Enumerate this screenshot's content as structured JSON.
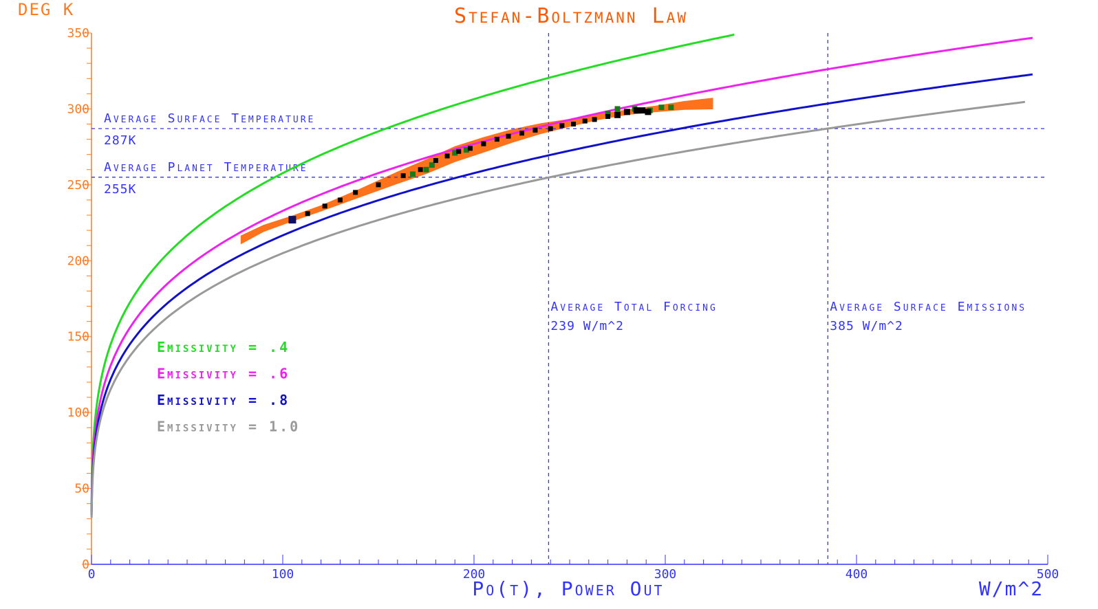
{
  "chart_data": {
    "type": "line",
    "title": "Stefan-Boltzmann Law",
    "ylabel": "DEG K",
    "xlabel": "Po(t), Power Out",
    "xunit": "W/m^2",
    "xlim": [
      0,
      500
    ],
    "ylim": [
      0,
      350
    ],
    "xticks": [
      "0",
      "100",
      "200",
      "300",
      "400",
      "500"
    ],
    "yticks": [
      "0",
      "50",
      "100",
      "150",
      "200",
      "250",
      "300",
      "350"
    ],
    "grid": false,
    "legend_position": "left-middle",
    "series": [
      {
        "name": "Emissivity = .4",
        "emissivity": 0.4,
        "color": "#22dd22",
        "xmax": 337
      },
      {
        "name": "Emissivity = .6",
        "emissivity": 0.6,
        "color": "#ee22ee",
        "xmax": 493
      },
      {
        "name": "Emissivity = .8",
        "emissivity": 0.8,
        "color": "#1111cc",
        "xmax": 493
      },
      {
        "name": "Emissivity = 1.0",
        "emissivity": 1.0,
        "color": "#999999",
        "xmax": 490
      }
    ],
    "reference_lines": [
      {
        "orientation": "horizontal",
        "value": 287,
        "label": "Average Surface Temperature",
        "value_label": "287K"
      },
      {
        "orientation": "horizontal",
        "value": 255,
        "label": "Average Planet Temperature",
        "value_label": "255K"
      },
      {
        "orientation": "vertical",
        "value": 239,
        "label": "Average Total Forcing",
        "value_label": "239 W/m^2"
      },
      {
        "orientation": "vertical",
        "value": 385,
        "label": "Average Surface Emissions",
        "value_label": "385 W/m^2"
      }
    ],
    "observations": {
      "cloud_color": "#ff6a10",
      "cloud_path": [
        [
          78,
          213
        ],
        [
          90,
          221
        ],
        [
          105,
          228
        ],
        [
          120,
          235
        ],
        [
          140,
          245
        ],
        [
          160,
          255
        ],
        [
          175,
          262
        ],
        [
          190,
          270
        ],
        [
          205,
          276
        ],
        [
          220,
          282
        ],
        [
          235,
          287
        ],
        [
          250,
          291
        ],
        [
          265,
          295
        ],
        [
          280,
          298
        ],
        [
          295,
          300
        ],
        [
          310,
          302
        ],
        [
          325,
          303
        ]
      ],
      "black_points": [
        [
          105,
          227
        ],
        [
          113,
          231
        ],
        [
          122,
          236
        ],
        [
          130,
          240
        ],
        [
          138,
          245
        ],
        [
          150,
          250
        ],
        [
          163,
          256
        ],
        [
          172,
          260
        ],
        [
          180,
          266
        ],
        [
          186,
          269
        ],
        [
          192,
          272
        ],
        [
          198,
          274
        ],
        [
          205,
          277
        ],
        [
          212,
          280
        ],
        [
          218,
          282
        ],
        [
          225,
          284
        ],
        [
          232,
          286
        ],
        [
          240,
          287
        ],
        [
          246,
          289
        ],
        [
          252,
          290
        ],
        [
          258,
          292
        ],
        [
          263,
          293
        ],
        [
          270,
          295
        ],
        [
          275,
          296
        ],
        [
          280,
          298
        ],
        [
          285,
          299
        ],
        [
          288,
          299
        ],
        [
          291,
          298
        ]
      ],
      "green_points": [
        [
          168,
          257
        ],
        [
          175,
          260
        ],
        [
          178,
          263
        ],
        [
          190,
          271
        ],
        [
          196,
          273
        ],
        [
          270,
          297
        ],
        [
          275,
          300
        ],
        [
          284,
          300
        ],
        [
          292,
          299
        ],
        [
          298,
          301
        ],
        [
          303,
          301
        ]
      ]
    }
  },
  "colors": {
    "axis": "#ff7a20",
    "title": "#ff5a00",
    "ref_line": "#3333ff",
    "x_label": "#3333ff"
  }
}
